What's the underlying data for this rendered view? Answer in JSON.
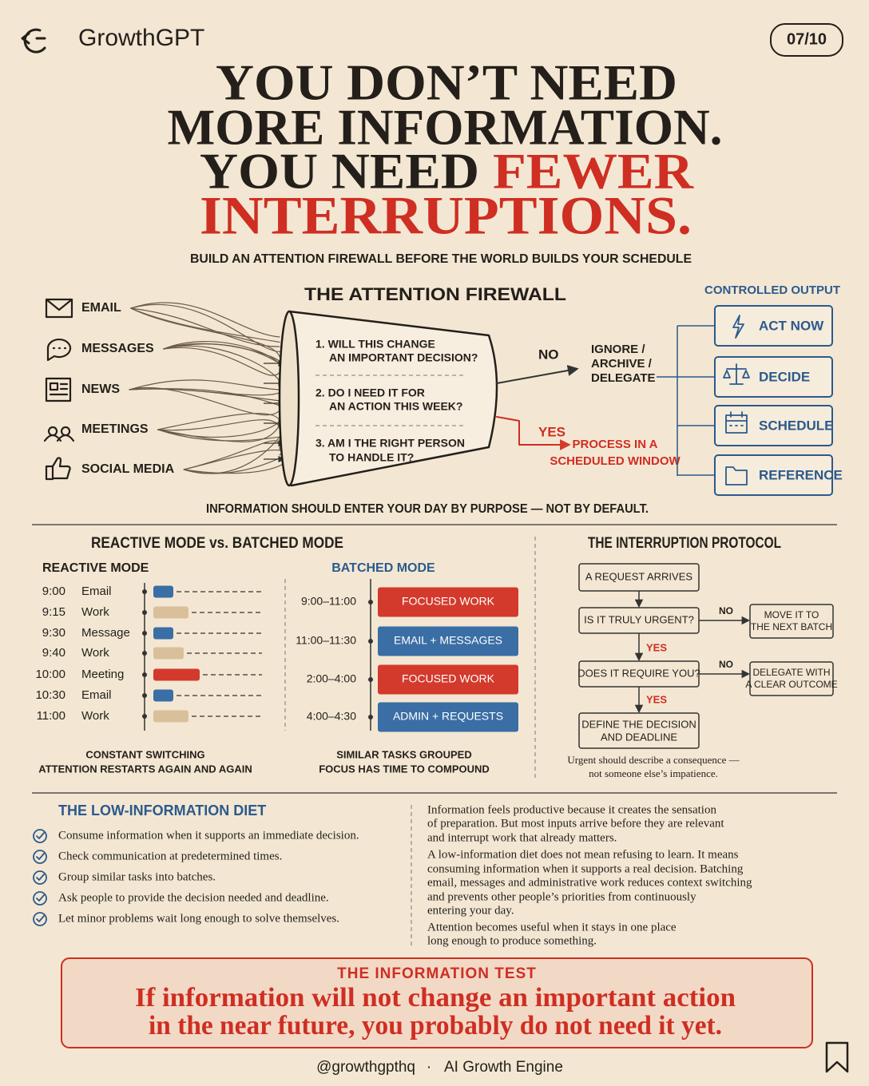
{
  "header": {
    "brand": "GrowthGPT",
    "page": "07/10"
  },
  "headline": {
    "line1": "YOU DON’T NEED",
    "line2": "MORE INFORMATION.",
    "line3a": "YOU NEED",
    "line3b": "FEWER",
    "line4": "INTERRUPTIONS.",
    "subtitle": "BUILD AN ATTENTION FIREWALL BEFORE THE WORLD BUILDS YOUR SCHEDULE"
  },
  "firewall": {
    "title": "THE ATTENTION FIREWALL",
    "inputs": [
      "EMAIL",
      "MESSAGES",
      "NEWS",
      "MEETINGS",
      "SOCIAL MEDIA"
    ],
    "questions": [
      [
        "1.  WILL THIS CHANGE",
        "AN IMPORTANT DECISION?"
      ],
      [
        "2.  DO I NEED IT FOR",
        "AN ACTION THIS WEEK?"
      ],
      [
        "3.  AM I THE RIGHT PERSON",
        "TO HANDLE IT?"
      ]
    ],
    "no": "NO",
    "no_result": [
      "IGNORE /",
      "ARCHIVE /",
      "DELEGATE"
    ],
    "yes": "YES",
    "yes_result": [
      "PROCESS IN A",
      "SCHEDULED WINDOW"
    ],
    "output_title": "CONTROLLED OUTPUT",
    "outputs": [
      "ACT NOW",
      "DECIDE",
      "SCHEDULE",
      "REFERENCE"
    ],
    "footer": "INFORMATION SHOULD ENTER YOUR DAY BY PURPOSE — NOT BY DEFAULT."
  },
  "modes": {
    "title": "REACTIVE MODE vs. BATCHED MODE",
    "reactive": {
      "title": "REACTIVE MODE",
      "rows": [
        {
          "time": "9:00",
          "label": "Email",
          "color": "#3a6ea5"
        },
        {
          "time": "9:15",
          "label": "Work",
          "color": "#d9c09a"
        },
        {
          "time": "9:30",
          "label": "Message",
          "color": "#3a6ea5"
        },
        {
          "time": "9:40",
          "label": "Work",
          "color": "#d9c09a"
        },
        {
          "time": "10:00",
          "label": "Meeting",
          "color": "#d33a2c"
        },
        {
          "time": "10:30",
          "label": "Email",
          "color": "#3a6ea5"
        },
        {
          "time": "11:00",
          "label": "Work",
          "color": "#d9c09a"
        }
      ],
      "caption": [
        "CONSTANT SWITCHING",
        "ATTENTION RESTARTS AGAIN AND AGAIN"
      ]
    },
    "batched": {
      "title": "BATCHED MODE",
      "rows": [
        {
          "time": "9:00–11:00",
          "label": "FOCUSED WORK",
          "color": "#d33a2c"
        },
        {
          "time": "11:00–11:30",
          "label": "EMAIL + MESSAGES",
          "color": "#3a6ea5"
        },
        {
          "time": "2:00–4:00",
          "label": "FOCUSED WORK",
          "color": "#d33a2c"
        },
        {
          "time": "4:00–4:30",
          "label": "ADMIN + REQUESTS",
          "color": "#3a6ea5"
        }
      ],
      "caption": [
        "SIMILAR TASKS GROUPED",
        "FOCUS HAS TIME TO COMPOUND"
      ]
    }
  },
  "protocol": {
    "title": "THE INTERRUPTION PROTOCOL",
    "start": "A REQUEST ARRIVES",
    "q1": "IS IT TRULY URGENT?",
    "q1_no": "NO",
    "q1_no_result": [
      "MOVE IT TO",
      "THE NEXT BATCH"
    ],
    "q1_yes": "YES",
    "q2": "DOES IT REQUIRE YOU?",
    "q2_no": "NO",
    "q2_no_result": [
      "DELEGATE WITH",
      "A CLEAR OUTCOME"
    ],
    "q2_yes": "YES",
    "end": [
      "DEFINE THE DECISION",
      "AND DEADLINE"
    ],
    "note": [
      "Urgent should describe a consequence —",
      "not someone else’s impatience."
    ]
  },
  "diet": {
    "title": "THE LOW-INFORMATION DIET",
    "items": [
      "Consume information when it supports an immediate decision.",
      "Check communication at predetermined times.",
      "Group similar tasks into batches.",
      "Ask people to provide the decision needed and deadline.",
      "Let minor problems wait long enough to solve themselves."
    ],
    "paragraphs": [
      [
        "Information feels productive because it creates the sensation",
        "of preparation. But most inputs arrive before they are relevant",
        "and interrupt work that already matters."
      ],
      [
        "A low-information diet does not mean refusing to learn. It means",
        "consuming information when it supports a real decision. Batching",
        "email, messages and administrative work reduces context switching",
        "and prevents other people’s priorities from continuously",
        "entering your day."
      ],
      [
        "Attention becomes useful when it stays in one place",
        "long enough to produce something."
      ]
    ]
  },
  "test": {
    "title": "THE INFORMATION TEST",
    "lines": [
      "If information will not change an important action",
      "in the near future, you probably do not need it yet."
    ]
  },
  "footer": {
    "handle": "@growthgpthq",
    "separator": "·",
    "tagline": "AI Growth Engine"
  }
}
